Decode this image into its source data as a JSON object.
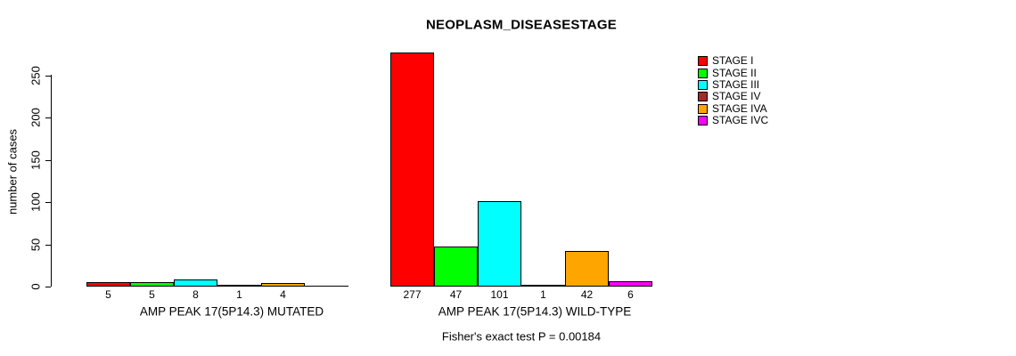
{
  "title": "NEOPLASM_DISEASESTAGE",
  "y_axis": {
    "label": "number of cases",
    "ticks": [
      0,
      50,
      100,
      150,
      200,
      250
    ],
    "range": [
      0,
      250
    ]
  },
  "footer": "Fisher's exact test P = 0.00184",
  "legend": {
    "items": [
      {
        "label": "STAGE I",
        "color": "#FF0000"
      },
      {
        "label": "STAGE II",
        "color": "#00FF00"
      },
      {
        "label": "STAGE III",
        "color": "#00FFFF"
      },
      {
        "label": "STAGE IV",
        "color": "#A52A2A"
      },
      {
        "label": "STAGE IVA",
        "color": "#FFA500"
      },
      {
        "label": "STAGE IVC",
        "color": "#FF00FF"
      }
    ]
  },
  "chart_data": {
    "type": "bar",
    "title": "NEOPLASM_DISEASESTAGE",
    "ylabel": "number of cases",
    "ylim": [
      0,
      250
    ],
    "yticks": [
      0,
      50,
      100,
      150,
      200,
      250
    ],
    "categories": [
      "STAGE I",
      "STAGE II",
      "STAGE III",
      "STAGE IV",
      "STAGE IVA",
      "STAGE IVC"
    ],
    "colors": [
      "#FF0000",
      "#00FF00",
      "#00FFFF",
      "#A52A2A",
      "#FFA500",
      "#FF00FF"
    ],
    "groups": [
      {
        "label": "AMP PEAK 17(5P14.3) MUTATED",
        "values": [
          5,
          5,
          8,
          1,
          4,
          0
        ],
        "value_labels": [
          "5",
          "5",
          "8",
          "1",
          "4",
          ""
        ]
      },
      {
        "label": "AMP PEAK 17(5P14.3) WILD-TYPE",
        "values": [
          277,
          47,
          101,
          1,
          42,
          6
        ],
        "value_labels": [
          "277",
          "47",
          "101",
          "1",
          "42",
          "6"
        ]
      }
    ],
    "annotation": "Fisher's exact test P = 0.00184",
    "legend_position": "right",
    "grid": false
  }
}
